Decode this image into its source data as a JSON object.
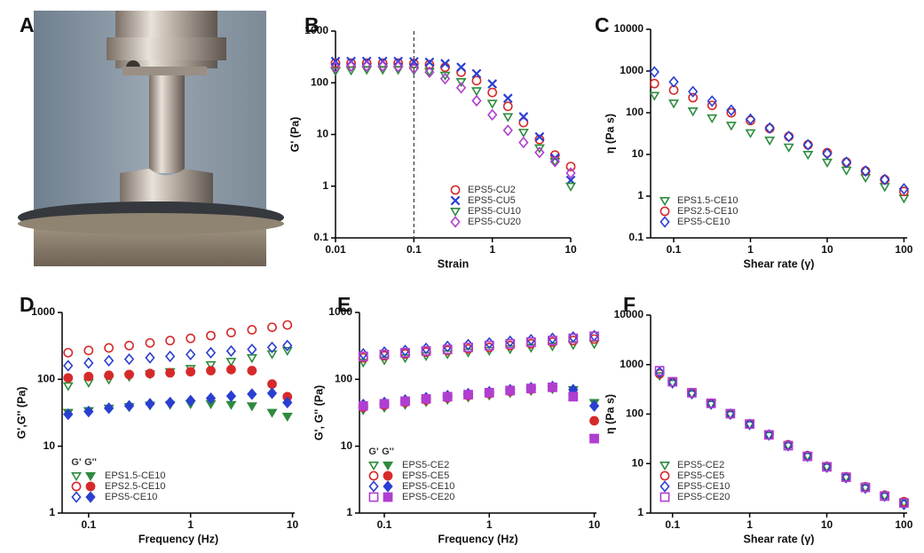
{
  "photo_label": "A",
  "chart_data": [
    {
      "type": "scatter",
      "panel": "B",
      "x_label": "Strain",
      "y_label": "G' (Pa)",
      "log_x": true,
      "log_y": true,
      "xlim": [
        0.01,
        10
      ],
      "ylim": [
        0.1,
        1000
      ],
      "xticks": [
        0.01,
        0.1,
        1,
        10
      ],
      "yticks": [
        0.1,
        1,
        10,
        100,
        1000
      ],
      "vline": 0.1,
      "legend": "lower right",
      "x": [
        0.01,
        0.0158,
        0.025,
        0.04,
        0.063,
        0.1,
        0.158,
        0.25,
        0.4,
        0.63,
        1,
        1.58,
        2.5,
        4,
        6.3,
        10
      ],
      "series": [
        {
          "name": "EPS5-CU2",
          "color": "#d62a2a",
          "marker": "circle",
          "values": [
            240,
            240,
            240,
            240,
            240,
            235,
            225,
            200,
            160,
            110,
            65,
            35,
            17,
            8,
            4,
            2.4
          ]
        },
        {
          "name": "EPS5-CU5",
          "color": "#2a3fd0",
          "marker": "x",
          "values": [
            260,
            260,
            260,
            260,
            260,
            255,
            250,
            235,
            200,
            150,
            95,
            50,
            22,
            9,
            3.5,
            1.3
          ]
        },
        {
          "name": "EPS5-CU10",
          "color": "#2e8b3e",
          "marker": "tri",
          "values": [
            170,
            175,
            180,
            180,
            180,
            175,
            165,
            140,
            105,
            70,
            40,
            22,
            11,
            5.5,
            3,
            1
          ]
        },
        {
          "name": "EPS5-CU20",
          "color": "#b03ed0",
          "marker": "diamond",
          "values": [
            200,
            210,
            210,
            210,
            205,
            190,
            160,
            120,
            80,
            45,
            24,
            12,
            7,
            4.5,
            3,
            1.8
          ]
        }
      ]
    },
    {
      "type": "scatter",
      "panel": "C",
      "x_label": "Shear rate (γ)",
      "y_label": "η (Pa s)",
      "log_x": true,
      "log_y": true,
      "xlim": [
        0.05,
        110
      ],
      "ylim": [
        0.1,
        10000
      ],
      "xticks": [
        0.1,
        1,
        10,
        100
      ],
      "yticks": [
        0.1,
        1,
        10,
        100,
        1000,
        10000
      ],
      "legend": "lower left",
      "x": [
        0.056,
        0.1,
        0.178,
        0.316,
        0.562,
        1,
        1.78,
        3.16,
        5.62,
        10,
        17.8,
        31.6,
        56.2,
        100
      ],
      "series": [
        {
          "name": "EPS1.5-CE10",
          "color": "#2e8b3e",
          "marker": "tri",
          "values": [
            260,
            170,
            110,
            75,
            50,
            33,
            22,
            15,
            10,
            6.5,
            4.2,
            2.8,
            1.7,
            0.9
          ]
        },
        {
          "name": "EPS2.5-CE10",
          "color": "#d62a2a",
          "marker": "circle",
          "values": [
            500,
            350,
            230,
            150,
            100,
            65,
            42,
            27,
            17,
            11,
            6.5,
            4,
            2.5,
            1.3
          ]
        },
        {
          "name": "EPS5-CE10",
          "color": "#2a3fd0",
          "marker": "diamond",
          "values": [
            950,
            550,
            320,
            190,
            115,
            70,
            43,
            27,
            17,
            10.5,
            6.5,
            4,
            2.5,
            1.5
          ]
        }
      ]
    },
    {
      "type": "dual-scatter",
      "panel": "D",
      "x_label": "Frequency (Hz)",
      "y_label": "G',G'' (Pa)",
      "log_x": true,
      "log_y": true,
      "xlim": [
        0.055,
        10.5
      ],
      "ylim": [
        1,
        1000
      ],
      "xticks": [
        0.1,
        1,
        10
      ],
      "yticks": [
        1,
        10,
        100,
        1000
      ],
      "legend": "lower left",
      "legend_header": [
        "G'",
        "G''"
      ],
      "x": [
        0.063,
        0.1,
        0.158,
        0.25,
        0.4,
        0.63,
        1,
        1.58,
        2.5,
        4,
        6.3,
        8.9
      ],
      "series": [
        {
          "name": "EPS1.5-CE10",
          "color": "#2e8b3e",
          "marker": "tri",
          "values": [
            80,
            90,
            100,
            110,
            120,
            130,
            145,
            165,
            185,
            210,
            240,
            270
          ],
          "values_loss": [
            32,
            34,
            37,
            39,
            41,
            42,
            43,
            43,
            42,
            40,
            32,
            28
          ]
        },
        {
          "name": "EPS2.5-CE10",
          "color": "#d62a2a",
          "marker": "circle",
          "values": [
            250,
            270,
            295,
            320,
            350,
            380,
            410,
            450,
            500,
            550,
            600,
            650
          ],
          "values_loss": [
            105,
            110,
            115,
            118,
            122,
            125,
            130,
            135,
            140,
            135,
            85,
            55
          ]
        },
        {
          "name": "EPS5-CE10",
          "color": "#2a3fd0",
          "marker": "diamond",
          "values": [
            160,
            175,
            190,
            200,
            210,
            220,
            235,
            250,
            265,
            280,
            300,
            320
          ],
          "values_loss": [
            30,
            33,
            37,
            40,
            43,
            45,
            48,
            52,
            56,
            60,
            62,
            45
          ]
        }
      ]
    },
    {
      "type": "dual-scatter",
      "panel": "E",
      "x_label": "Frequency (Hz)",
      "y_label": "G', G'' (Pa)",
      "log_x": true,
      "log_y": true,
      "xlim": [
        0.058,
        10.5
      ],
      "ylim": [
        1,
        1000
      ],
      "xticks": [
        0.1,
        1,
        10
      ],
      "yticks": [
        1,
        10,
        100,
        1000
      ],
      "legend": "lower left",
      "legend_header": [
        "G'",
        "G''"
      ],
      "x": [
        0.063,
        0.1,
        0.158,
        0.25,
        0.4,
        0.63,
        1,
        1.58,
        2.5,
        4,
        6.3,
        10
      ],
      "series": [
        {
          "name": "EPS5-CE2",
          "color": "#2e8b3e",
          "marker": "tri",
          "values": [
            180,
            195,
            210,
            225,
            240,
            255,
            270,
            285,
            300,
            315,
            330,
            340
          ],
          "values_loss": [
            35,
            38,
            42,
            46,
            50,
            54,
            58,
            63,
            68,
            72,
            70,
            45
          ]
        },
        {
          "name": "EPS5-CE5",
          "color": "#d62a2a",
          "marker": "circle",
          "values": [
            210,
            225,
            240,
            255,
            270,
            285,
            300,
            320,
            340,
            360,
            380,
            400
          ],
          "values_loss": [
            38,
            41,
            45,
            49,
            53,
            57,
            61,
            66,
            71,
            75,
            60,
            24
          ]
        },
        {
          "name": "EPS5-CE10",
          "color": "#2a3fd0",
          "marker": "diamond",
          "values": [
            240,
            255,
            270,
            290,
            310,
            330,
            350,
            370,
            390,
            410,
            430,
            450
          ],
          "values_loss": [
            42,
            45,
            49,
            53,
            57,
            61,
            65,
            70,
            75,
            78,
            70,
            40
          ]
        },
        {
          "name": "EPS5-CE20",
          "color": "#b03ed0",
          "marker": "square",
          "values": [
            220,
            235,
            250,
            265,
            280,
            300,
            320,
            340,
            360,
            380,
            410,
            440
          ],
          "values_loss": [
            40,
            43,
            47,
            51,
            55,
            59,
            63,
            68,
            73,
            76,
            55,
            13
          ]
        }
      ]
    },
    {
      "type": "scatter",
      "panel": "F",
      "x_label": "Shear rate (γ)",
      "y_label": "η (Pa s)",
      "log_x": true,
      "log_y": true,
      "xlim": [
        0.052,
        110
      ],
      "ylim": [
        1,
        10000
      ],
      "xticks": [
        0.1,
        1,
        10,
        100
      ],
      "yticks": [
        1,
        10,
        100,
        1000,
        10000
      ],
      "legend": "lower left",
      "x": [
        0.068,
        0.1,
        0.178,
        0.316,
        0.562,
        1,
        1.78,
        3.16,
        5.62,
        10,
        17.8,
        31.6,
        56.2,
        100
      ],
      "series": [
        {
          "name": "EPS5-CE2",
          "color": "#2e8b3e",
          "marker": "tri",
          "values": [
            600,
            420,
            255,
            158,
            98,
            61,
            37,
            23,
            14,
            8.5,
            5.2,
            3.2,
            2.2,
            1.6
          ]
        },
        {
          "name": "EPS5-CE5",
          "color": "#d62a2a",
          "marker": "circle",
          "values": [
            650,
            440,
            265,
            162,
            100,
            63,
            38,
            24,
            14.5,
            8.8,
            5.4,
            3.4,
            2.3,
            1.7
          ]
        },
        {
          "name": "EPS5-CE10",
          "color": "#2a3fd0",
          "marker": "diamond",
          "values": [
            700,
            430,
            260,
            160,
            100,
            62,
            38,
            23,
            14,
            8.5,
            5.2,
            3.2,
            2.2,
            1.5
          ]
        },
        {
          "name": "EPS5-CE20",
          "color": "#b03ed0",
          "marker": "square",
          "values": [
            750,
            450,
            270,
            165,
            102,
            63,
            38,
            23,
            14,
            8.6,
            5.3,
            3.3,
            2.2,
            1.6
          ]
        }
      ]
    }
  ]
}
